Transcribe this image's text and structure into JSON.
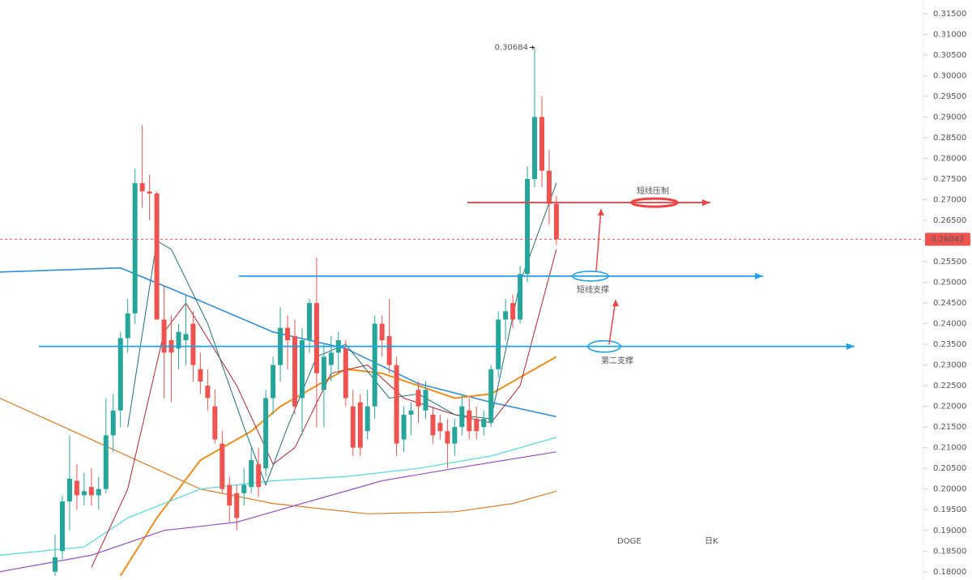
{
  "chart_data": {
    "type": "candlestick",
    "up_color": "#26a69a",
    "down_color": "#ef5350",
    "candles": [
      [
        0.18,
        0.189,
        0.179,
        0.1835
      ],
      [
        0.185,
        0.1985,
        0.183,
        0.197
      ],
      [
        0.197,
        0.213,
        0.19,
        0.2025
      ],
      [
        0.202,
        0.206,
        0.195,
        0.1985
      ],
      [
        0.1985,
        0.204,
        0.196,
        0.1995
      ],
      [
        0.2005,
        0.205,
        0.196,
        0.1985
      ],
      [
        0.1985,
        0.203,
        0.195,
        0.2
      ],
      [
        0.2,
        0.222,
        0.199,
        0.213
      ],
      [
        0.213,
        0.223,
        0.209,
        0.219
      ],
      [
        0.219,
        0.238,
        0.215,
        0.2365
      ],
      [
        0.2365,
        0.246,
        0.233,
        0.2425
      ],
      [
        0.2425,
        0.2775,
        0.24,
        0.274
      ],
      [
        0.274,
        0.288,
        0.268,
        0.272
      ],
      [
        0.272,
        0.276,
        0.265,
        0.2715
      ],
      [
        0.2715,
        0.272,
        0.242,
        0.241
      ],
      [
        0.241,
        0.249,
        0.222,
        0.233
      ],
      [
        0.236,
        0.242,
        0.221,
        0.233
      ],
      [
        0.234,
        0.24,
        0.229,
        0.238
      ],
      [
        0.236,
        0.247,
        0.23,
        0.2375
      ],
      [
        0.24,
        0.243,
        0.226,
        0.23
      ],
      [
        0.229,
        0.233,
        0.223,
        0.226
      ],
      [
        0.225,
        0.229,
        0.219,
        0.222
      ],
      [
        0.22,
        0.224,
        0.211,
        0.212
      ],
      [
        0.211,
        0.214,
        0.199,
        0.2
      ],
      [
        0.201,
        0.203,
        0.192,
        0.196
      ],
      [
        0.199,
        0.201,
        0.19,
        0.193
      ],
      [
        0.199,
        0.205,
        0.196,
        0.201
      ],
      [
        0.2005,
        0.21,
        0.199,
        0.207
      ],
      [
        0.206,
        0.21,
        0.198,
        0.2005
      ],
      [
        0.205,
        0.224,
        0.203,
        0.222
      ],
      [
        0.222,
        0.232,
        0.218,
        0.23
      ],
      [
        0.23,
        0.244,
        0.226,
        0.239
      ],
      [
        0.239,
        0.242,
        0.229,
        0.236
      ],
      [
        0.237,
        0.241,
        0.218,
        0.22
      ],
      [
        0.222,
        0.239,
        0.213,
        0.236
      ],
      [
        0.236,
        0.246,
        0.233,
        0.245
      ],
      [
        0.245,
        0.256,
        0.215,
        0.228
      ],
      [
        0.224,
        0.235,
        0.215,
        0.232
      ],
      [
        0.23,
        0.237,
        0.226,
        0.233
      ],
      [
        0.233,
        0.238,
        0.228,
        0.236
      ],
      [
        0.234,
        0.236,
        0.22,
        0.222
      ],
      [
        0.22,
        0.224,
        0.208,
        0.21
      ],
      [
        0.221,
        0.223,
        0.208,
        0.21
      ],
      [
        0.214,
        0.224,
        0.212,
        0.22
      ],
      [
        0.22,
        0.242,
        0.217,
        0.24
      ],
      [
        0.24,
        0.242,
        0.232,
        0.236
      ],
      [
        0.237,
        0.246,
        0.228,
        0.23
      ],
      [
        0.23,
        0.232,
        0.208,
        0.211
      ],
      [
        0.212,
        0.22,
        0.209,
        0.218
      ],
      [
        0.218,
        0.221,
        0.213,
        0.219
      ],
      [
        0.224,
        0.226,
        0.216,
        0.22
      ],
      [
        0.219,
        0.226,
        0.217,
        0.224
      ],
      [
        0.218,
        0.22,
        0.211,
        0.213
      ],
      [
        0.216,
        0.218,
        0.212,
        0.214
      ],
      [
        0.214,
        0.217,
        0.205,
        0.211
      ],
      [
        0.211,
        0.217,
        0.208,
        0.215
      ],
      [
        0.215,
        0.223,
        0.213,
        0.22
      ],
      [
        0.219,
        0.222,
        0.212,
        0.214
      ],
      [
        0.217,
        0.22,
        0.212,
        0.214
      ],
      [
        0.215,
        0.219,
        0.213,
        0.217
      ],
      [
        0.216,
        0.23,
        0.215,
        0.229
      ],
      [
        0.229,
        0.243,
        0.227,
        0.241
      ],
      [
        0.241,
        0.246,
        0.236,
        0.243
      ],
      [
        0.245,
        0.247,
        0.239,
        0.241
      ],
      [
        0.241,
        0.254,
        0.24,
        0.252
      ],
      [
        0.252,
        0.278,
        0.25,
        0.275
      ],
      [
        0.275,
        0.30684,
        0.273,
        0.29
      ],
      [
        0.29,
        0.295,
        0.273,
        0.277
      ],
      [
        0.277,
        0.282,
        0.264,
        0.269
      ],
      [
        0.269,
        0.271,
        0.259,
        0.26042
      ]
    ],
    "high_label": "0.30684",
    "last_label": "0.26042",
    "overlays": [
      {
        "color": "#2f8fdc",
        "width": 1.6,
        "x": [
          -7.6,
          9,
          20,
          30,
          40,
          50,
          60,
          69
        ],
        "values": [
          0.2525,
          0.2535,
          0.2455,
          0.238,
          0.234,
          0.2255,
          0.221,
          0.2175
        ]
      },
      {
        "color": "#e07b24",
        "width": 1.2,
        "x": [
          -7.6,
          10,
          20,
          30,
          43,
          55,
          63,
          69
        ],
        "values": [
          0.222,
          0.208,
          0.2,
          0.1965,
          0.194,
          0.1945,
          0.1965,
          0.1995
        ]
      },
      {
        "color": "#f08c1a",
        "width": 2,
        "x": [
          9,
          14,
          20,
          27,
          31,
          37,
          40,
          45,
          50,
          55,
          60,
          65,
          69
        ],
        "values": [
          0.179,
          0.193,
          0.207,
          0.214,
          0.22,
          0.226,
          0.229,
          0.228,
          0.225,
          0.222,
          0.223,
          0.228,
          0.232
        ]
      },
      {
        "color": "#4dd9e0",
        "width": 1.2,
        "x": [
          -7.6,
          4,
          10,
          20,
          30,
          40,
          50,
          60,
          69
        ],
        "values": [
          0.184,
          0.186,
          0.193,
          0.2,
          0.202,
          0.203,
          0.205,
          0.208,
          0.2125
        ]
      },
      {
        "color": "#9b4fc4",
        "width": 1.2,
        "x": [
          -7.6,
          5,
          15,
          25,
          35,
          45,
          55,
          62,
          69
        ],
        "values": [
          0.18,
          0.184,
          0.19,
          0.192,
          0.197,
          0.202,
          0.205,
          0.207,
          0.209
        ]
      },
      {
        "color": "#b3262b",
        "width": 1,
        "x": [
          5,
          10,
          15,
          18,
          25,
          30,
          33,
          38,
          43,
          48,
          55,
          60,
          64,
          69
        ],
        "values": [
          0.181,
          0.2,
          0.238,
          0.245,
          0.225,
          0.206,
          0.21,
          0.228,
          0.23,
          0.222,
          0.218,
          0.216,
          0.225,
          0.258
        ]
      },
      {
        "color": "#1f6f78",
        "width": 1,
        "x": [
          10,
          14,
          16,
          21,
          26,
          29,
          32,
          36,
          40,
          46,
          50,
          55,
          60,
          64,
          69
        ],
        "values": [
          0.215,
          0.26,
          0.258,
          0.24,
          0.215,
          0.201,
          0.215,
          0.232,
          0.235,
          0.222,
          0.223,
          0.218,
          0.217,
          0.25,
          0.274
        ]
      }
    ],
    "levels": [
      {
        "label": "短线压制",
        "value": 0.2693,
        "color": "#ef4444"
      },
      {
        "label": "短线支撑",
        "value": 0.2515,
        "color": "#1ea1e8"
      },
      {
        "label": "第二支撑",
        "value": 0.2345,
        "color": "#1ea1e8"
      }
    ],
    "symbol": "DOGE",
    "period": "日K",
    "ylim": [
      0.178,
      0.3183
    ],
    "yticks": [
      {
        "value": 0.18,
        "label": "0.18000"
      },
      {
        "value": 0.185,
        "label": "0.18500"
      },
      {
        "value": 0.19,
        "label": "0.19000"
      },
      {
        "value": 0.195,
        "label": "0.19500"
      },
      {
        "value": 0.2,
        "label": "0.20000"
      },
      {
        "value": 0.205,
        "label": "0.20500"
      },
      {
        "value": 0.21,
        "label": "0.21000"
      },
      {
        "value": 0.215,
        "label": "0.21500"
      },
      {
        "value": 0.22,
        "label": "0.22000"
      },
      {
        "value": 0.225,
        "label": "0.22500"
      },
      {
        "value": 0.23,
        "label": "0.23000"
      },
      {
        "value": 0.235,
        "label": "0.23500"
      },
      {
        "value": 0.24,
        "label": "0.24000"
      },
      {
        "value": 0.245,
        "label": "0.24500"
      },
      {
        "value": 0.25,
        "label": "0.25000"
      },
      {
        "value": 0.255,
        "label": "0.25500"
      },
      {
        "value": 0.26,
        "label": "0.26000"
      },
      {
        "value": 0.265,
        "label": "0.26500"
      },
      {
        "value": 0.27,
        "label": "0.27000"
      },
      {
        "value": 0.275,
        "label": "0.27500"
      },
      {
        "value": 0.28,
        "label": "0.28000"
      },
      {
        "value": 0.285,
        "label": "0.28500"
      },
      {
        "value": 0.29,
        "label": "0.29000"
      },
      {
        "value": 0.295,
        "label": "0.29500"
      },
      {
        "value": 0.3,
        "label": "0.30000"
      },
      {
        "value": 0.305,
        "label": "0.30500"
      },
      {
        "value": 0.31,
        "label": "0.31000"
      },
      {
        "value": 0.315,
        "label": "0.31500"
      }
    ]
  }
}
